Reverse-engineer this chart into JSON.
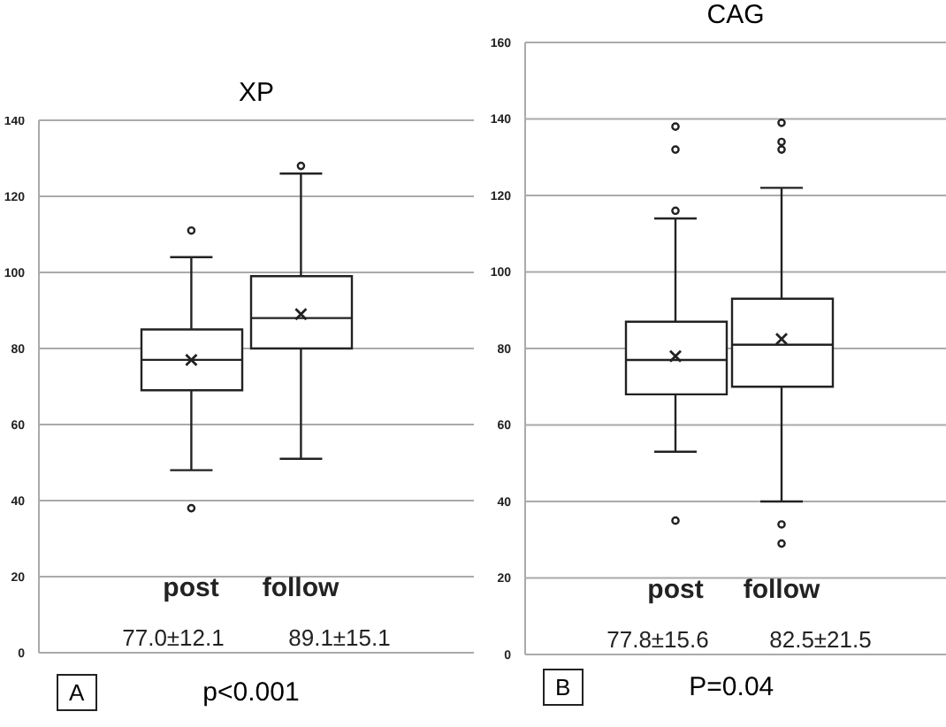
{
  "chart_data": [
    {
      "type": "box",
      "title": "XP",
      "categories": [
        "post",
        "follow"
      ],
      "color": "#222222",
      "ylim": [
        0,
        140
      ],
      "yticks": [
        0,
        20,
        40,
        60,
        80,
        100,
        120,
        140
      ],
      "grid": "y",
      "boxes": [
        {
          "low": 48,
          "q1": 69,
          "median": 77,
          "q3": 85,
          "high": 104,
          "mean": 77,
          "outliers": [
            111,
            38
          ]
        },
        {
          "low": 51,
          "q1": 80,
          "median": 88,
          "q3": 99,
          "high": 126,
          "mean": 89,
          "outliers": [
            128
          ]
        }
      ],
      "annotations": [
        "77.0±12.1",
        "89.1±15.1",
        "A",
        "p<0.001"
      ]
    },
    {
      "type": "box",
      "title": "CAG",
      "categories": [
        "post",
        "follow"
      ],
      "color": "#222222",
      "ylim": [
        0,
        160
      ],
      "yticks": [
        0,
        20,
        40,
        60,
        80,
        100,
        120,
        140,
        160
      ],
      "grid": "y",
      "boxes": [
        {
          "low": 53,
          "q1": 68,
          "median": 77,
          "q3": 87,
          "high": 114,
          "mean": 78,
          "outliers": [
            138,
            132,
            116,
            35
          ]
        },
        {
          "low": 40,
          "q1": 70,
          "median": 81,
          "q3": 93,
          "high": 122,
          "mean": 82.5,
          "outliers": [
            139,
            134,
            132,
            34,
            29
          ]
        }
      ],
      "annotations": [
        "77.8±15.6",
        "82.5±21.5",
        "B",
        "P=0.04"
      ]
    }
  ]
}
